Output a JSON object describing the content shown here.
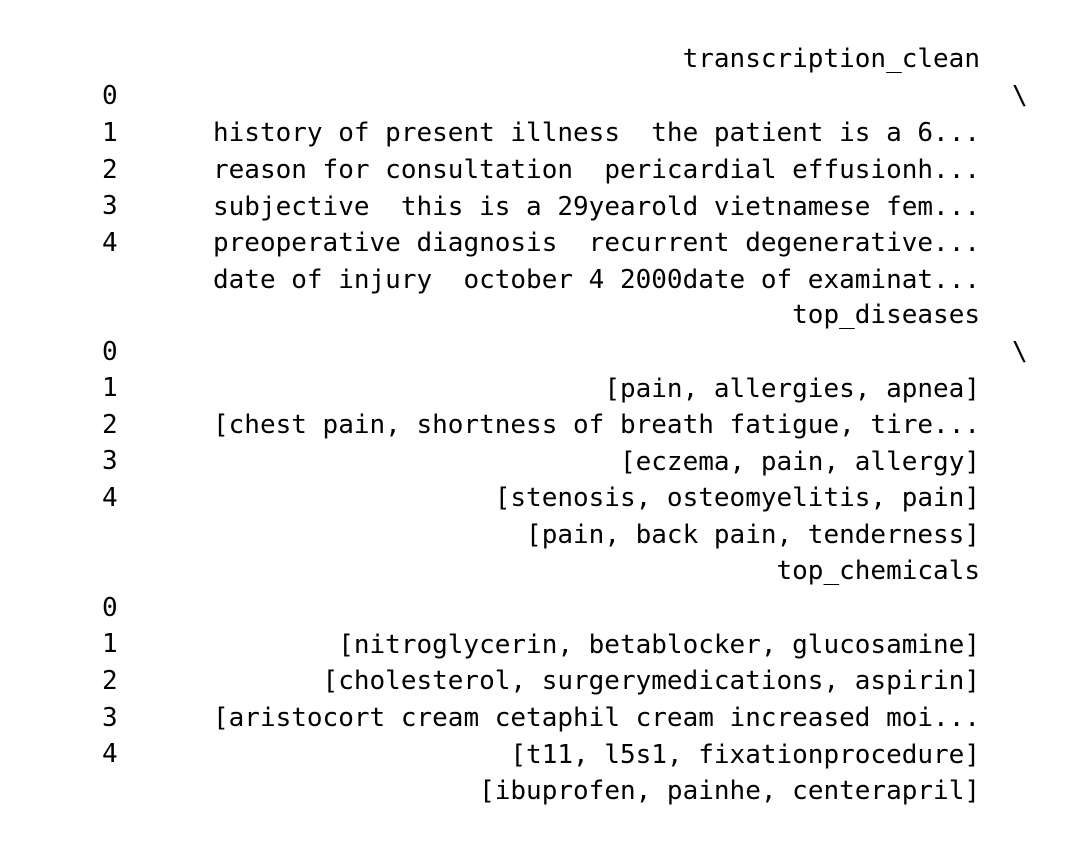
{
  "output": {
    "blocks": [
      {
        "header": "transcription_clean",
        "continuation": "\\",
        "rows": [
          {
            "index": "0",
            "value": "history of present illness  the patient is a 6..."
          },
          {
            "index": "1",
            "value": "reason for consultation  pericardial effusionh..."
          },
          {
            "index": "2",
            "value": "subjective  this is a 29yearold vietnamese fem..."
          },
          {
            "index": "3",
            "value": "preoperative diagnosis  recurrent degenerative..."
          },
          {
            "index": "4",
            "value": "date of injury  october 4 2000date of examinat..."
          }
        ]
      },
      {
        "header": "top_diseases",
        "continuation": "\\",
        "rows": [
          {
            "index": "0",
            "value": "[pain, allergies, apnea]"
          },
          {
            "index": "1",
            "value": "[chest pain, shortness of breath fatigue, tire..."
          },
          {
            "index": "2",
            "value": "[eczema, pain, allergy]"
          },
          {
            "index": "3",
            "value": "[stenosis, osteomyelitis, pain]"
          },
          {
            "index": "4",
            "value": "[pain, back pain, tenderness]"
          }
        ]
      },
      {
        "header": "top_chemicals",
        "continuation": "",
        "rows": [
          {
            "index": "0",
            "value": "[nitroglycerin, betablocker, glucosamine]"
          },
          {
            "index": "1",
            "value": "[cholesterol, surgerymedications, aspirin]"
          },
          {
            "index": "2",
            "value": "[aristocort cream cetaphil cream increased moi..."
          },
          {
            "index": "3",
            "value": "[t11, l5s1, fixationprocedure]"
          },
          {
            "index": "4",
            "value": "[ibuprofen, painhe, centerapril]"
          }
        ]
      }
    ]
  }
}
